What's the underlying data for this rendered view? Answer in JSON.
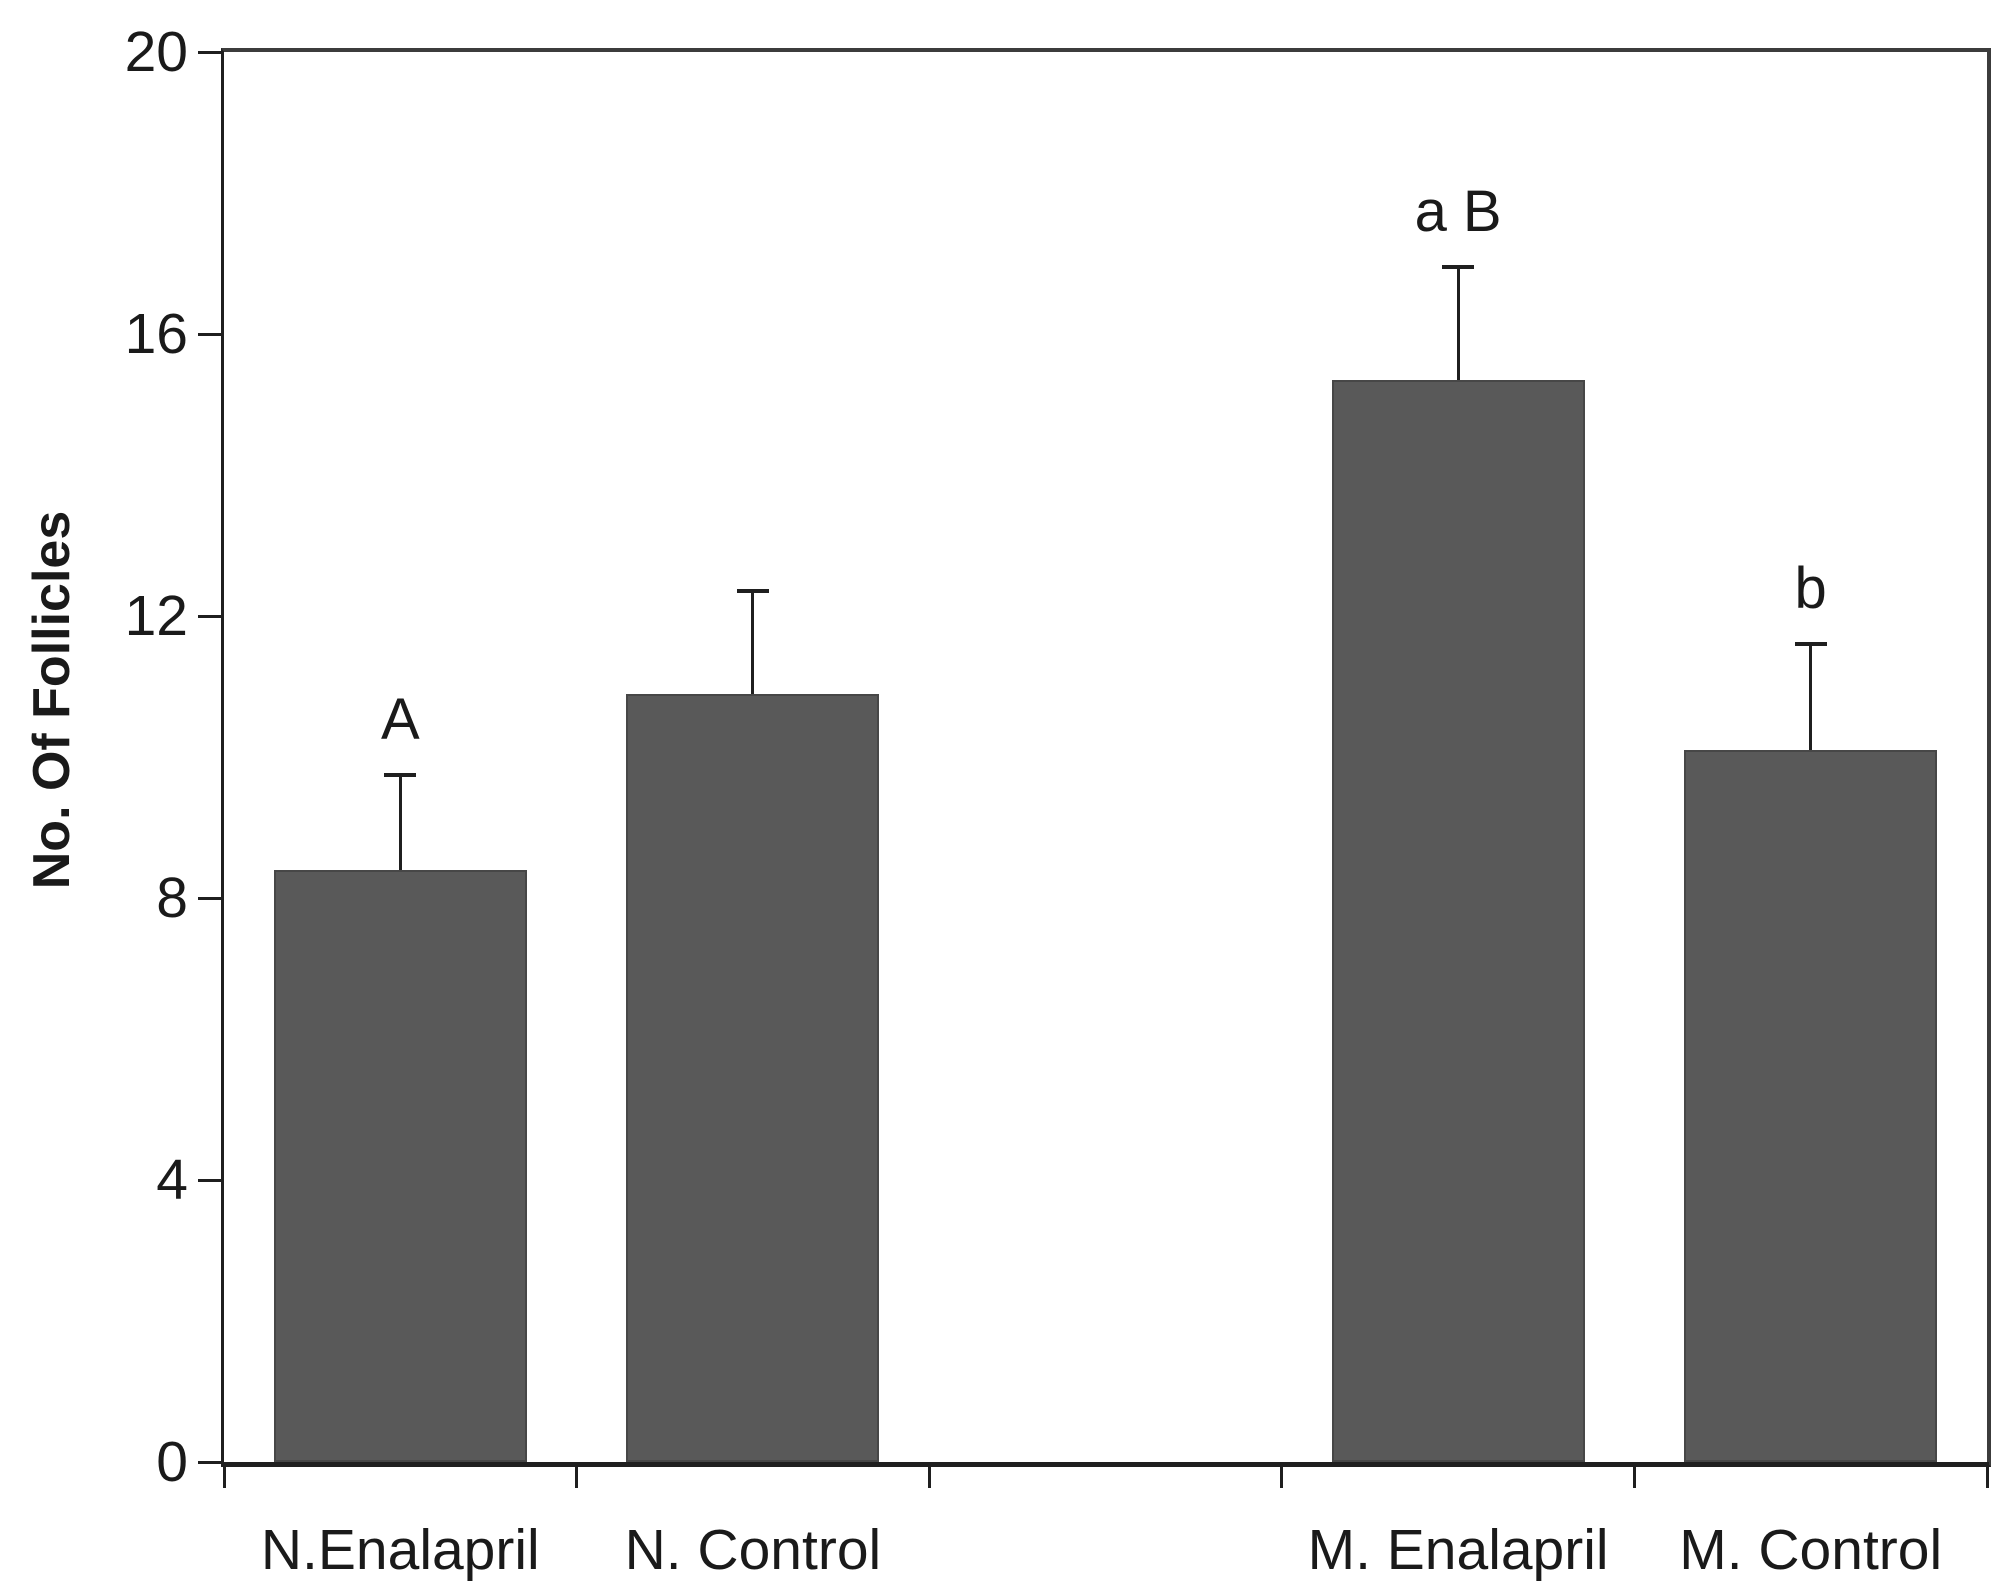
{
  "chart_data": {
    "type": "bar",
    "title": "",
    "ylabel": "No. Of Follicles",
    "xlabel": "",
    "ylim": [
      0,
      20
    ],
    "yticks": [
      0,
      4,
      8,
      12,
      16,
      20
    ],
    "grid": false,
    "legend": "none",
    "num_slots": 5,
    "categories": [
      "N.Enalapril",
      "N. Control",
      "M. Enalapril",
      "M. Control"
    ],
    "slots": [
      0,
      1,
      3,
      4
    ],
    "values": [
      8.4,
      10.9,
      15.35,
      10.1
    ],
    "errors_plus": [
      1.35,
      1.45,
      1.6,
      1.5
    ],
    "annotations": [
      "A",
      "",
      "a B",
      "b"
    ],
    "bar_color": "#595959",
    "bar_border_color": "#474747",
    "axis_color": "#1f1f1f",
    "frame_color": "#3c3c3c",
    "text_color": "#1a1a1a",
    "background_color": "#ffffff"
  }
}
